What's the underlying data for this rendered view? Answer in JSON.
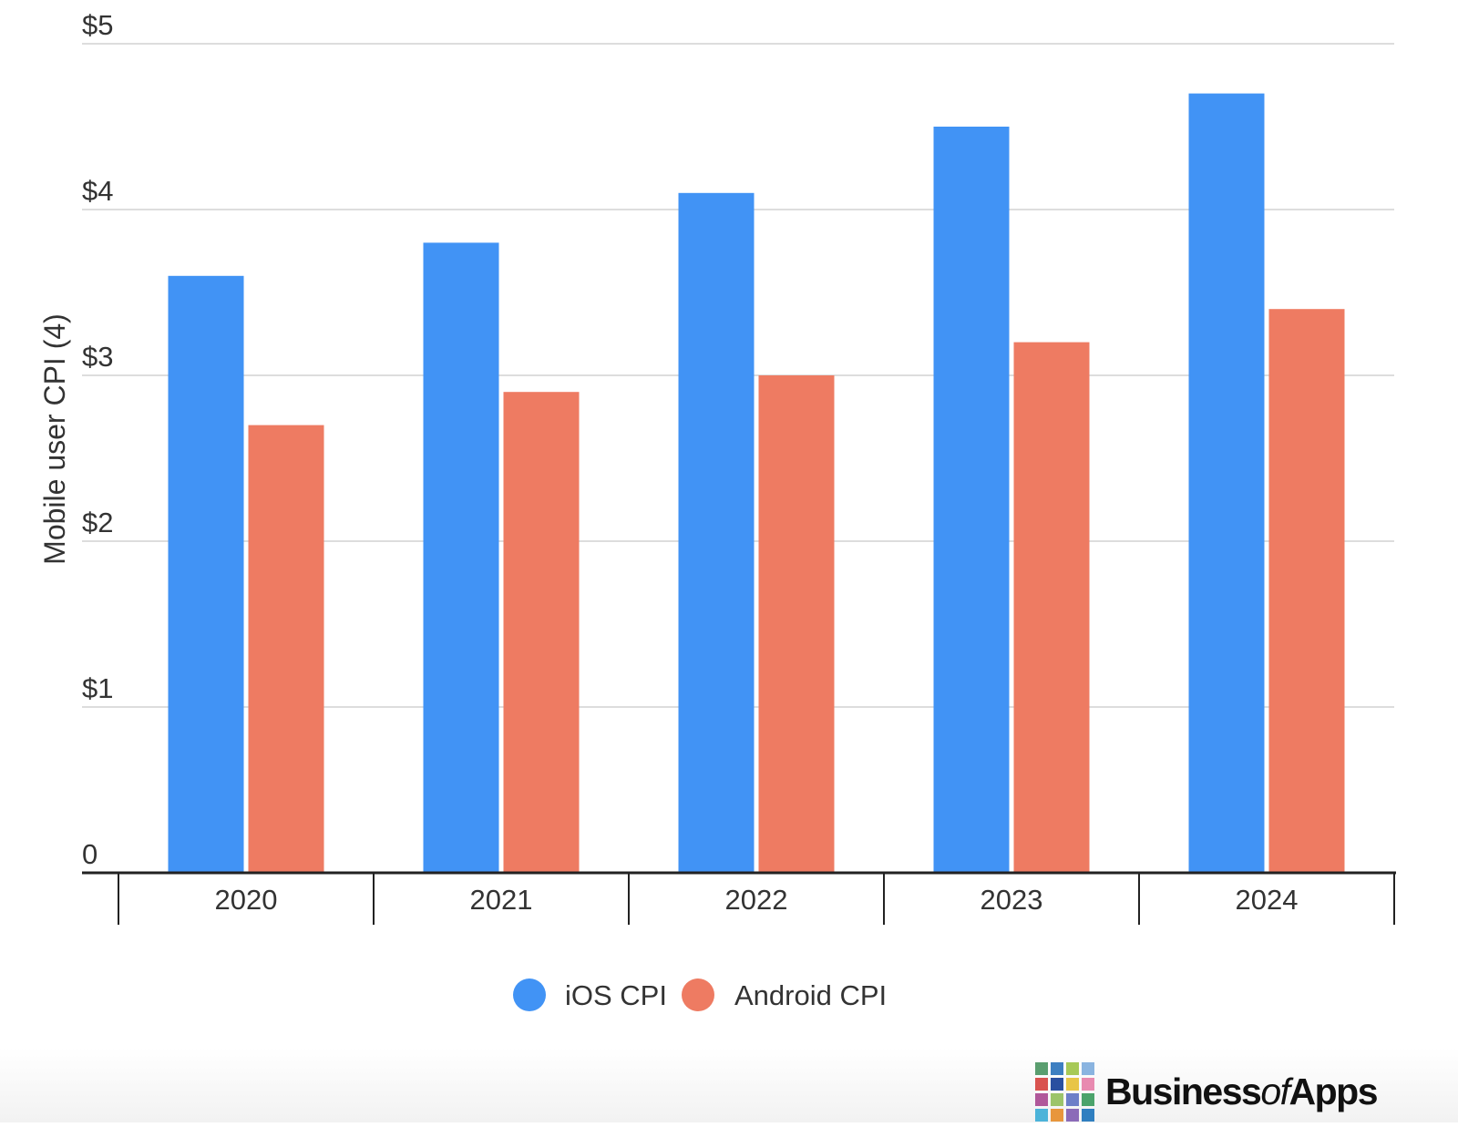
{
  "chart_data": {
    "type": "bar",
    "categories": [
      "2020",
      "2021",
      "2022",
      "2023",
      "2024"
    ],
    "series": [
      {
        "name": "iOS CPI",
        "color": "#4193f5",
        "values": [
          3.6,
          3.8,
          4.1,
          4.5,
          4.7
        ]
      },
      {
        "name": "Android CPI",
        "color": "#ee7b62",
        "values": [
          2.7,
          2.9,
          3.0,
          3.2,
          3.4
        ]
      }
    ],
    "ylabel": "Mobile user CPI (4)",
    "ylim": [
      0,
      5
    ],
    "yticks": [
      0,
      1,
      2,
      3,
      4,
      5
    ],
    "ytick_labels": [
      "0",
      "$1",
      "$2",
      "$3",
      "$4",
      "$5"
    ],
    "grid": true,
    "legend_position": "bottom-center"
  },
  "branding": {
    "name_prefix": "Business",
    "name_of": "of",
    "name_suffix": "Apps",
    "icon_name": "businessofapps-grid-logo-icon",
    "logo_colors": [
      "#5a9e6f",
      "#3d7fc1",
      "#a7c957",
      "#8ab4e0",
      "#d9534f",
      "#2a4fa0",
      "#e8c547",
      "#e88ab0",
      "#b0589a",
      "#9cc46a",
      "#6d7fc8",
      "#4ba36b",
      "#4bb3d9",
      "#e8963c",
      "#8b6bb8",
      "#2f7fc0"
    ]
  }
}
